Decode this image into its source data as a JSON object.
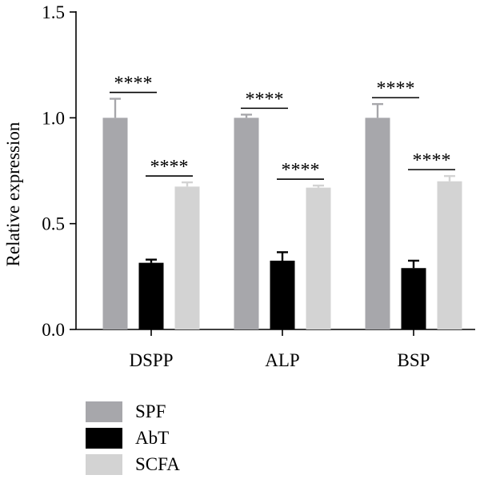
{
  "chart_data": {
    "type": "bar",
    "categories": [
      "DSPP",
      "ALP",
      "BSP"
    ],
    "series": [
      {
        "name": "SPF",
        "color": "#a7a7ab",
        "values": [
          1.0,
          1.0,
          1.0
        ],
        "errors": [
          0.09,
          0.015,
          0.065
        ]
      },
      {
        "name": "AbT",
        "color": "#000000",
        "values": [
          0.315,
          0.325,
          0.29
        ],
        "errors": [
          0.015,
          0.04,
          0.035
        ]
      },
      {
        "name": "SCFA",
        "color": "#d3d3d3",
        "values": [
          0.675,
          0.67,
          0.7
        ],
        "errors": [
          0.02,
          0.01,
          0.025
        ]
      }
    ],
    "ylabel": "Relative expression",
    "xlabel": "",
    "ylim": [
      0,
      1.5
    ],
    "yticks": [
      "0.0",
      "0.5",
      "1.0",
      "1.5"
    ],
    "significance": [
      {
        "category": "DSPP",
        "pair": [
          "SPF",
          "AbT"
        ],
        "label": "****"
      },
      {
        "category": "DSPP",
        "pair": [
          "AbT",
          "SCFA"
        ],
        "label": "****"
      },
      {
        "category": "ALP",
        "pair": [
          "SPF",
          "AbT"
        ],
        "label": "****"
      },
      {
        "category": "ALP",
        "pair": [
          "AbT",
          "SCFA"
        ],
        "label": "****"
      },
      {
        "category": "BSP",
        "pair": [
          "SPF",
          "AbT"
        ],
        "label": "****"
      },
      {
        "category": "BSP",
        "pair": [
          "AbT",
          "SCFA"
        ],
        "label": "****"
      }
    ],
    "legend_position": "bottom-left",
    "grid": false
  }
}
